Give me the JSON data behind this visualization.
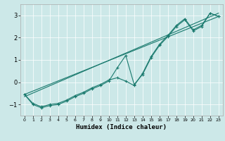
{
  "xlabel": "Humidex (Indice chaleur)",
  "ylabel": "",
  "xlim": [
    -0.5,
    23.5
  ],
  "ylim": [
    -1.5,
    3.5
  ],
  "yticks": [
    -1,
    0,
    1,
    2,
    3
  ],
  "xticks": [
    0,
    1,
    2,
    3,
    4,
    5,
    6,
    7,
    8,
    9,
    10,
    11,
    12,
    13,
    14,
    15,
    16,
    17,
    18,
    19,
    20,
    21,
    22,
    23
  ],
  "bg_color": "#cce8e8",
  "line_color": "#1a7a6e",
  "lines": [
    {
      "x": [
        0,
        1,
        2,
        3,
        4,
        5,
        6,
        7,
        8,
        9,
        10,
        11,
        12,
        13,
        14,
        15,
        16,
        17,
        18,
        19,
        20,
        21,
        22,
        23
      ],
      "y": [
        -0.55,
        -1.0,
        -1.15,
        -1.05,
        -1.0,
        -0.85,
        -0.65,
        -0.5,
        -0.3,
        -0.15,
        0.05,
        0.65,
        1.2,
        -0.1,
        0.35,
        1.1,
        1.65,
        2.05,
        2.5,
        2.8,
        2.3,
        2.5,
        3.1,
        2.95
      ],
      "marker": true
    },
    {
      "x": [
        0,
        1,
        2,
        3,
        4,
        5,
        6,
        7,
        8,
        9,
        10,
        11,
        12,
        13,
        14,
        15,
        16,
        17,
        18,
        19,
        20,
        21,
        22,
        23
      ],
      "y": [
        -0.55,
        -0.95,
        -1.1,
        -1.0,
        -0.95,
        -0.8,
        -0.6,
        -0.45,
        -0.25,
        -0.1,
        0.1,
        0.2,
        0.05,
        -0.15,
        0.4,
        1.15,
        1.7,
        2.1,
        2.55,
        2.85,
        2.35,
        2.55,
        3.1,
        2.95
      ],
      "marker": true
    },
    {
      "x": [
        0,
        23
      ],
      "y": [
        -0.65,
        3.1
      ],
      "marker": false
    },
    {
      "x": [
        0,
        23
      ],
      "y": [
        -0.55,
        2.95
      ],
      "marker": false
    }
  ]
}
